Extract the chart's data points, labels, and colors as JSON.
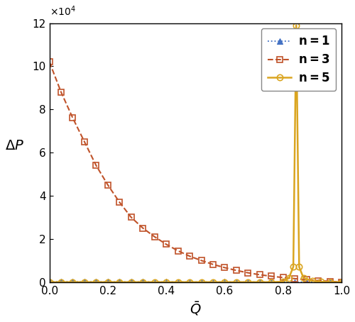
{
  "title": "",
  "xlabel": "$\\bar{Q}$",
  "ylabel": "$\\Delta P$",
  "xlim": [
    0,
    1.0
  ],
  "ylim": [
    0,
    120000
  ],
  "legend": [
    {
      "label": "n = 1",
      "color": "#4472C4",
      "linestyle": "dotted",
      "marker": "^",
      "markersize": 6
    },
    {
      "label": "n = 3",
      "color": "#C0532A",
      "linestyle": "dashed",
      "marker": "s",
      "markersize": 6
    },
    {
      "label": "n = 5",
      "color": "#DAA520",
      "linestyle": "solid",
      "marker": "o",
      "markersize": 6
    }
  ],
  "n1_Q": [
    0.0,
    0.04,
    0.08,
    0.12,
    0.16,
    0.2,
    0.24,
    0.28,
    0.32,
    0.36,
    0.4,
    0.44,
    0.48,
    0.52,
    0.56,
    0.6,
    0.64,
    0.68,
    0.72,
    0.76,
    0.8,
    0.84,
    0.88,
    0.92,
    0.96,
    1.0
  ],
  "n1_dP": [
    200,
    180,
    160,
    140,
    120,
    100,
    90,
    80,
    70,
    60,
    50,
    45,
    40,
    35,
    30,
    25,
    20,
    18,
    15,
    12,
    10,
    8,
    6,
    4,
    2,
    0
  ],
  "n3_Q": [
    0.0,
    0.04,
    0.08,
    0.12,
    0.16,
    0.2,
    0.24,
    0.28,
    0.32,
    0.36,
    0.4,
    0.44,
    0.48,
    0.52,
    0.56,
    0.6,
    0.64,
    0.68,
    0.72,
    0.76,
    0.8,
    0.84,
    0.88,
    0.92,
    0.96,
    1.0
  ],
  "n3_dP": [
    102000,
    88000,
    76000,
    65000,
    54000,
    45000,
    37000,
    30000,
    25000,
    21000,
    17500,
    14500,
    12000,
    10000,
    8200,
    6700,
    5400,
    4300,
    3400,
    2700,
    2100,
    1600,
    1100,
    700,
    350,
    50
  ],
  "n5_Q": [
    0.0,
    0.04,
    0.08,
    0.12,
    0.16,
    0.2,
    0.24,
    0.28,
    0.32,
    0.36,
    0.4,
    0.44,
    0.48,
    0.52,
    0.56,
    0.6,
    0.64,
    0.68,
    0.72,
    0.76,
    0.8,
    0.82,
    0.835,
    0.845,
    0.855,
    0.87,
    0.9,
    0.93,
    0.96,
    1.0
  ],
  "n5_dP": [
    0,
    0,
    0,
    0,
    0,
    0,
    0,
    0,
    0,
    0,
    0,
    0,
    0,
    0,
    0,
    0,
    0,
    0,
    0,
    0,
    200,
    1900,
    7100,
    119000,
    7000,
    1900,
    500,
    150,
    50,
    0
  ],
  "background_color": "#ffffff"
}
